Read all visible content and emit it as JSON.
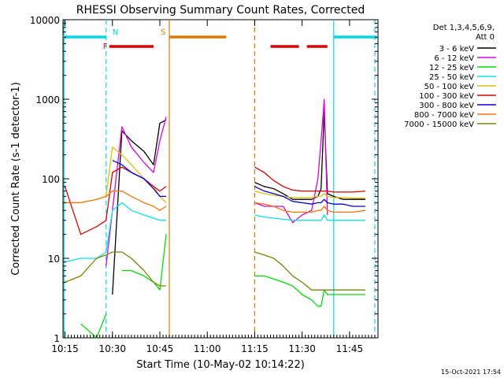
{
  "colors": {
    "frame": "#000000",
    "flag_saa": "#00d8e8",
    "flag_night": "#00d8e8",
    "flag_flare": "#e00000",
    "flag_attenuator": "#e07800",
    "series": [
      "#000000",
      "#e000e0",
      "#00e000",
      "#00e8e8",
      "#e0c000",
      "#e00000",
      "#0000e0",
      "#ff7000",
      "#808000"
    ]
  },
  "chart_data": {
    "type": "line",
    "title": "RHESSI Observing Summary Count Rates, Corrected",
    "xlabel": "Start Time (10-May-02 10:14:22)",
    "ylabel": "Corrected Count Rate (s-1 detector-1)",
    "yscale": "log",
    "xlim": [
      "10:14:22",
      "11:54:00"
    ],
    "ylim": [
      1,
      10000
    ],
    "x_ticks": [
      "10:15",
      "10:30",
      "10:45",
      "11:00",
      "11:15",
      "11:30",
      "11:45"
    ],
    "y_ticks": [
      "1",
      "10",
      "100",
      "1000",
      "10000"
    ],
    "legend_header": [
      "Det 1,3,4,5,6,9,",
      "Att 0"
    ],
    "timestamp": "15-Oct-2021 17:54",
    "flags": [
      {
        "label": "",
        "kind": "saa",
        "row": "top",
        "start": "10:14:22",
        "end": "10:28:00"
      },
      {
        "label": "N",
        "kind": "night",
        "row": "top",
        "start": "10:28:00",
        "end": "10:28:00"
      },
      {
        "label": "F",
        "kind": "flare",
        "row": "mid",
        "start": "10:29:00",
        "end": "10:43:00"
      },
      {
        "label": "S",
        "kind": "attenuator",
        "row": "top",
        "start": "10:48:00",
        "end": "11:06:00"
      },
      {
        "label": "",
        "kind": "flare",
        "row": "mid",
        "start": "11:20:00",
        "end": "11:29:00"
      },
      {
        "label": "",
        "kind": "flare",
        "row": "mid",
        "start": "11:31:30",
        "end": "11:38:00"
      },
      {
        "label": "",
        "kind": "saa",
        "row": "top",
        "start": "11:40:00",
        "end": "11:54:00"
      }
    ],
    "vlines": [
      {
        "time": "10:14:40",
        "kind": "saa",
        "style": "solid"
      },
      {
        "time": "10:28:00",
        "kind": "night",
        "style": "dashed"
      },
      {
        "time": "10:48:00",
        "kind": "attenuator",
        "style": "solid"
      },
      {
        "time": "11:15:00",
        "kind": "attenuator",
        "style": "dashed"
      },
      {
        "time": "11:40:00",
        "kind": "saa",
        "style": "solid"
      },
      {
        "time": "11:53:00",
        "kind": "night",
        "style": "dashed"
      }
    ],
    "x": [
      "10:15",
      "10:20",
      "10:25",
      "10:28",
      "10:30",
      "10:33",
      "10:36",
      "10:40",
      "10:43",
      "10:45",
      "10:47",
      "10:48",
      "11:15",
      "11:18",
      "11:21",
      "11:24",
      "11:27",
      "11:30",
      "11:33",
      "11:35",
      "11:36",
      "11:37",
      "11:38",
      "11:40",
      "11:43",
      "11:46",
      "11:50"
    ],
    "series": [
      {
        "name": "3 - 6 keV",
        "values": [
          null,
          null,
          null,
          null,
          3.5,
          400,
          300,
          220,
          150,
          500,
          550,
          null,
          90,
          80,
          75,
          65,
          55,
          55,
          55,
          60,
          75,
          700,
          65,
          60,
          55,
          55,
          55
        ]
      },
      {
        "name": "6 - 12 keV",
        "values": [
          null,
          null,
          null,
          8,
          40,
          450,
          250,
          160,
          120,
          300,
          600,
          null,
          50,
          45,
          45,
          45,
          28,
          35,
          40,
          100,
          300,
          1000,
          35,
          null,
          null,
          null,
          null
        ]
      },
      {
        "name": "12 - 25 keV",
        "values": [
          null,
          1.5,
          1,
          2,
          null,
          7,
          7,
          6,
          5,
          4,
          20,
          null,
          6,
          6,
          5.5,
          5,
          4.5,
          3.5,
          3,
          2.5,
          2.5,
          4,
          3.5,
          3.5,
          3.5,
          3.5,
          3.5
        ]
      },
      {
        "name": "25 - 50 keV",
        "values": [
          9,
          10,
          10,
          12,
          40,
          50,
          40,
          35,
          32,
          30,
          30,
          null,
          35,
          33,
          32,
          31,
          30,
          30,
          30,
          30,
          30,
          35,
          30,
          30,
          30,
          30,
          30
        ]
      },
      {
        "name": "50 - 100 keV",
        "values": [
          50,
          50,
          55,
          60,
          250,
          200,
          150,
          100,
          80,
          60,
          50,
          null,
          70,
          65,
          62,
          60,
          58,
          58,
          58,
          60,
          60,
          65,
          60,
          58,
          58,
          57,
          57
        ]
      },
      {
        "name": "100 - 300 keV",
        "values": [
          80,
          20,
          25,
          30,
          120,
          140,
          120,
          100,
          80,
          70,
          80,
          null,
          140,
          120,
          95,
          80,
          72,
          70,
          70,
          70,
          70,
          70,
          70,
          68,
          68,
          68,
          70
        ]
      },
      {
        "name": "300 - 800 keV",
        "values": [
          null,
          null,
          null,
          null,
          170,
          150,
          120,
          100,
          75,
          60,
          60,
          null,
          80,
          70,
          65,
          60,
          52,
          50,
          48,
          50,
          50,
          55,
          50,
          48,
          48,
          45,
          45
        ]
      },
      {
        "name": "800 - 7000 keV",
        "values": [
          50,
          50,
          55,
          60,
          70,
          70,
          60,
          50,
          45,
          40,
          45,
          null,
          50,
          48,
          45,
          40,
          38,
          38,
          38,
          40,
          40,
          45,
          40,
          38,
          38,
          38,
          40
        ]
      },
      {
        "name": "7000 - 15000 keV",
        "values": [
          5,
          6,
          10,
          11,
          12,
          12,
          10,
          7,
          5,
          4.5,
          4.5,
          null,
          12,
          11,
          10,
          8,
          6,
          5,
          4,
          4,
          4,
          4,
          4,
          4,
          4,
          4,
          4
        ]
      }
    ]
  }
}
